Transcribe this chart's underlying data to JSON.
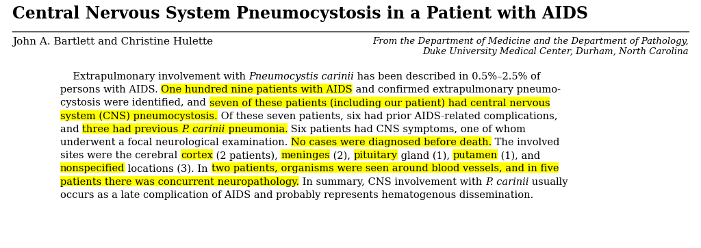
{
  "title": "Central Nervous System Pneumocystosis in a Patient with AIDS",
  "authors": "John A. Bartlett and Christine Hulette",
  "affiliation_line1": "From the Department of Medicine and the Department of Pathology,",
  "affiliation_line2": "Duke University Medical Center, Durham, North Carolina",
  "background_color": "#ffffff",
  "text_color": "#000000",
  "highlight_color": "#ffff00",
  "abstract_lines": [
    [
      {
        "text": "    Extrapulmonary involvement with ",
        "italic": false,
        "highlight": false
      },
      {
        "text": "Pneumocystis carinii",
        "italic": true,
        "highlight": false
      },
      {
        "text": " has been described in 0.5%–2.5% of",
        "italic": false,
        "highlight": false
      }
    ],
    [
      {
        "text": "persons with AIDS. ",
        "italic": false,
        "highlight": false
      },
      {
        "text": "One hundred nine patients with AIDS",
        "italic": false,
        "highlight": true
      },
      {
        "text": " and confirmed extrapulmonary pneumo-",
        "italic": false,
        "highlight": false
      }
    ],
    [
      {
        "text": "cystosis were identified, and ",
        "italic": false,
        "highlight": false
      },
      {
        "text": "seven of these patients (including our patient) had central nervous",
        "italic": false,
        "highlight": true
      }
    ],
    [
      {
        "text": "system (CNS) pneumocystosis.",
        "italic": false,
        "highlight": true
      },
      {
        "text": " Of these seven patients, six had prior AIDS-related complications,",
        "italic": false,
        "highlight": false
      }
    ],
    [
      {
        "text": "and ",
        "italic": false,
        "highlight": false
      },
      {
        "text": "three had previous ",
        "italic": false,
        "highlight": true
      },
      {
        "text": "P. carinii",
        "italic": true,
        "highlight": true
      },
      {
        "text": " pneumonia.",
        "italic": false,
        "highlight": true
      },
      {
        "text": " Six patients had CNS symptoms, one of whom",
        "italic": false,
        "highlight": false
      }
    ],
    [
      {
        "text": "underwent a focal neurological examination. ",
        "italic": false,
        "highlight": false
      },
      {
        "text": "No cases were diagnosed before death.",
        "italic": false,
        "highlight": true
      },
      {
        "text": " The involved",
        "italic": false,
        "highlight": false
      }
    ],
    [
      {
        "text": "sites were the cerebral ",
        "italic": false,
        "highlight": false
      },
      {
        "text": "cortex",
        "italic": false,
        "highlight": true
      },
      {
        "text": " (2 patients), ",
        "italic": false,
        "highlight": false
      },
      {
        "text": "meninges",
        "italic": false,
        "highlight": true
      },
      {
        "text": " (2), ",
        "italic": false,
        "highlight": false
      },
      {
        "text": "pituitary",
        "italic": false,
        "highlight": true
      },
      {
        "text": " gland (1), ",
        "italic": false,
        "highlight": false
      },
      {
        "text": "putamen",
        "italic": false,
        "highlight": true
      },
      {
        "text": " (1), and",
        "italic": false,
        "highlight": false
      }
    ],
    [
      {
        "text": "nonspecified",
        "italic": false,
        "highlight": true
      },
      {
        "text": " locations (3). In ",
        "italic": false,
        "highlight": false
      },
      {
        "text": "two patients, organisms were seen around blood vessels, and in five",
        "italic": false,
        "highlight": true
      }
    ],
    [
      {
        "text": "patients there was concurrent neuropathology.",
        "italic": false,
        "highlight": true
      },
      {
        "text": " In summary, CNS involvement with ",
        "italic": false,
        "highlight": false
      },
      {
        "text": "P. carinii",
        "italic": true,
        "highlight": false
      },
      {
        "text": " usually",
        "italic": false,
        "highlight": false
      }
    ],
    [
      {
        "text": "occurs as a late complication of AIDS and probably represents hematogenous dissemination.",
        "italic": false,
        "highlight": false
      }
    ]
  ]
}
